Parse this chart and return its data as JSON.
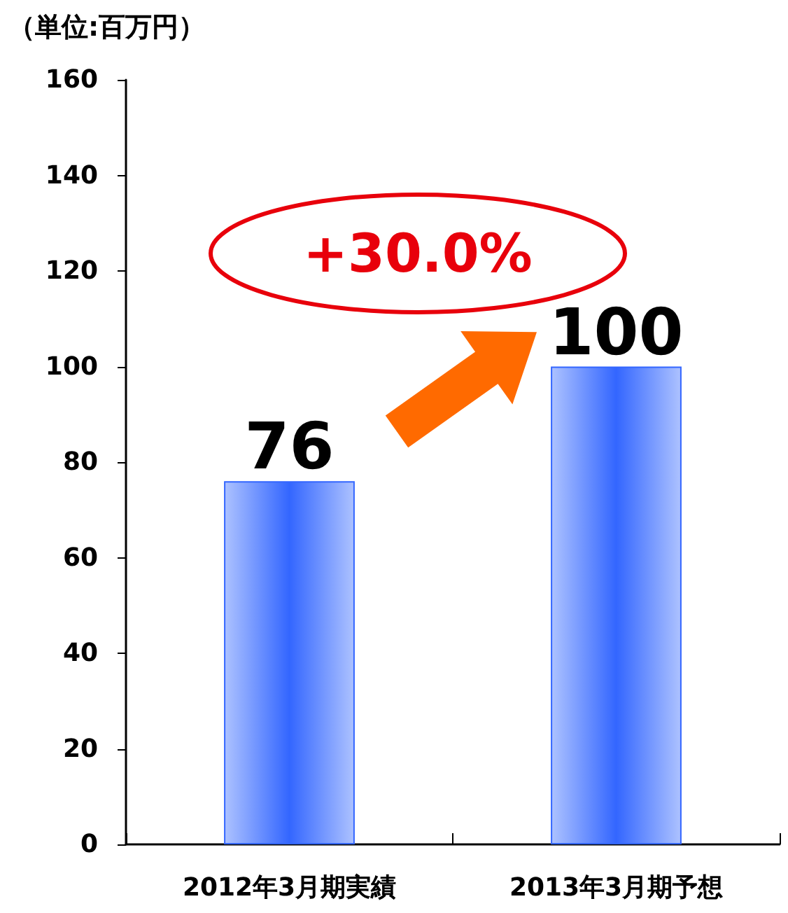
{
  "chart_data": {
    "type": "bar",
    "ylabel": "（単位:百万円）",
    "categories": [
      "2012年3月期実績",
      "2013年3月期予想"
    ],
    "values": [
      76,
      100
    ],
    "color": "#3366ff",
    "ylim": [
      0,
      160
    ],
    "yticks": [
      0,
      20,
      40,
      60,
      80,
      100,
      120,
      140,
      160
    ],
    "grid": false,
    "data_labels": true,
    "annotations": [
      "+30.0%"
    ]
  }
}
